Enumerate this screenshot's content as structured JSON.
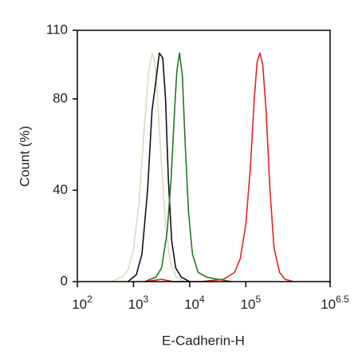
{
  "chart_data": {
    "type": "line",
    "xscale": "log",
    "xlabel": "E-Cadherin-H",
    "ylabel": "Count  (%)",
    "xlim": [
      100,
      3162277.66
    ],
    "ylim": [
      0,
      110
    ],
    "xticks": [
      {
        "value": 100,
        "label": "10",
        "sup": "2"
      },
      {
        "value": 1000,
        "label": "10",
        "sup": "3"
      },
      {
        "value": 10000,
        "label": "10",
        "sup": "4"
      },
      {
        "value": 100000,
        "label": "10",
        "sup": "5"
      },
      {
        "value": 3162277.66,
        "label": "10",
        "sup": "6.5"
      }
    ],
    "yticks": [
      0,
      40,
      80,
      110
    ],
    "series": [
      {
        "color": "#d9dcc0",
        "x": [
          398,
          631,
          794,
          1000,
          1259,
          1585,
          1862,
          2138,
          2399,
          2692,
          3162,
          3802,
          4571,
          5754,
          7943
        ],
        "values": [
          0,
          2,
          5,
          14,
          35,
          70,
          92,
          100,
          96,
          80,
          50,
          22,
          8,
          2,
          0
        ]
      },
      {
        "color": "#111111",
        "x": [
          794,
          1122,
          1413,
          1778,
          2138,
          2512,
          2884,
          3311,
          3715,
          4169,
          4786,
          5623,
          7079,
          10000
        ],
        "values": [
          0,
          3,
          12,
          40,
          75,
          88,
          100,
          98,
          80,
          45,
          18,
          6,
          2,
          0
        ]
      },
      {
        "color": "#1f7a1f",
        "x": [
          1585,
          2512,
          3162,
          3981,
          4677,
          5248,
          5888,
          6607,
          7413,
          8318,
          9550,
          11220,
          14125,
          19953,
          31623,
          56234
        ],
        "values": [
          0,
          2,
          6,
          22,
          45,
          70,
          92,
          100,
          90,
          60,
          30,
          12,
          4,
          2,
          1,
          0
        ]
      },
      {
        "color": "#e02424",
        "x": [
          1585,
          3162,
          5012,
          15849,
          39811,
          63096,
          79433,
          100000,
          120226,
          141254,
          158489,
          177828,
          199526,
          229087,
          269153,
          316228,
          398107,
          501187,
          707946
        ],
        "values": [
          0,
          1,
          0,
          0,
          1,
          4,
          10,
          25,
          50,
          80,
          96,
          100,
          95,
          75,
          40,
          15,
          4,
          1,
          0
        ]
      }
    ]
  }
}
